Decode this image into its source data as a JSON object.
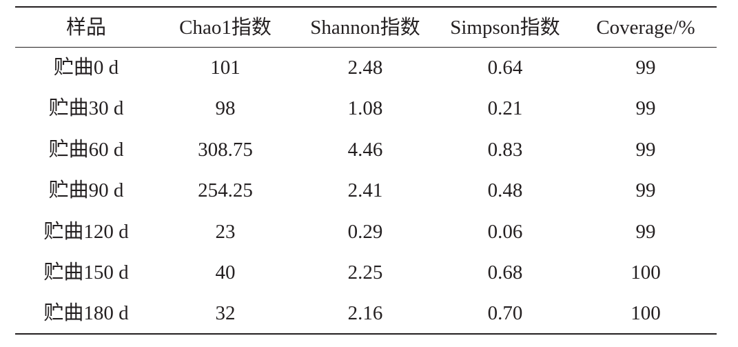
{
  "table": {
    "header": [
      "样品",
      "Chao1指数",
      "Shannon指数",
      "Simpson指数",
      "Coverage/%"
    ],
    "rows": [
      [
        "贮曲0 d",
        "101",
        "2.48",
        "0.64",
        "99"
      ],
      [
        "贮曲30 d",
        "98",
        "1.08",
        "0.21",
        "99"
      ],
      [
        "贮曲60 d",
        "308.75",
        "4.46",
        "0.83",
        "99"
      ],
      [
        "贮曲90 d",
        "254.25",
        "2.41",
        "0.48",
        "99"
      ],
      [
        "贮曲120 d",
        "23",
        "0.29",
        "0.06",
        "99"
      ],
      [
        "贮曲150 d",
        "40",
        "2.25",
        "0.68",
        "100"
      ],
      [
        "贮曲180 d",
        "32",
        "2.16",
        "0.70",
        "100"
      ]
    ]
  }
}
